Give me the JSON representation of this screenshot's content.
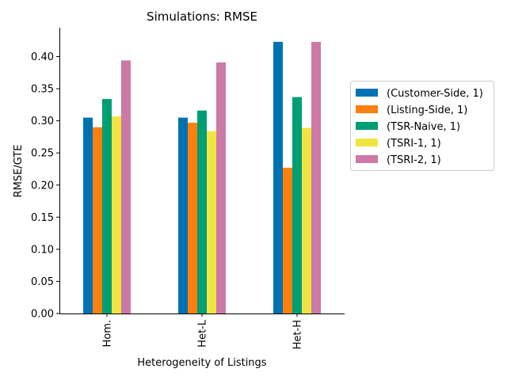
{
  "chart_data": {
    "type": "bar",
    "title": "Simulations: RMSE",
    "xlabel": "Heterogeneity of Listings",
    "ylabel": "RMSE/GTE",
    "categories": [
      "Hom.",
      "Het-L",
      "Het-H"
    ],
    "ylim": [
      0,
      0.445
    ],
    "yticks": [
      "0.00",
      "0.05",
      "0.10",
      "0.15",
      "0.20",
      "0.25",
      "0.30",
      "0.35",
      "0.40"
    ],
    "grid": false,
    "legend_position": "right",
    "series": [
      {
        "name": "(Customer-Side, 1)",
        "color": "#0072B2",
        "values": [
          0.305,
          0.305,
          0.423
        ]
      },
      {
        "name": "(Listing-Side, 1)",
        "color": "#FF7F0E",
        "values": [
          0.29,
          0.297,
          0.227
        ]
      },
      {
        "name": "(TSR-Naive, 1)",
        "color": "#009E73",
        "values": [
          0.334,
          0.316,
          0.337
        ]
      },
      {
        "name": "(TSRI-1, 1)",
        "color": "#F0E442",
        "values": [
          0.307,
          0.284,
          0.289
        ]
      },
      {
        "name": "(TSRI-2, 1)",
        "color": "#CC79A7",
        "values": [
          0.394,
          0.391,
          0.423
        ]
      }
    ]
  }
}
